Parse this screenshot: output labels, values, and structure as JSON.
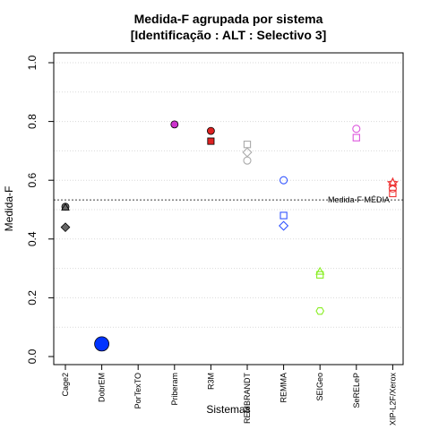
{
  "chart_data": {
    "type": "scatter",
    "title_line1": "Medida-F agrupada por sistema",
    "title_line2": "[Identificação : ALT : Selectivo 3]",
    "xlabel": "Sistemas",
    "ylabel": "Medida-F",
    "ylim": [
      0,
      1
    ],
    "yticks": [
      "0.0",
      "0.2",
      "0.4",
      "0.6",
      "0.8",
      "1.0"
    ],
    "categories": [
      "Cage2",
      "DobrEM",
      "PorTexTO",
      "Priberam",
      "R3M",
      "REMBRANDT",
      "REMMA",
      "SEIGeo",
      "SeRELeP",
      "XIP-L2F/Xerox"
    ],
    "reference_line": {
      "label": "Medida-F MÉDIA",
      "value": 0.533
    },
    "grid": "dotted horizontal",
    "points": [
      {
        "category": "Cage2",
        "y": 0.51,
        "shape": "circle",
        "color": "#666666",
        "filled": true,
        "size": "normal"
      },
      {
        "category": "Cage2",
        "y": 0.508,
        "shape": "triangle",
        "color": "#666666",
        "filled": true,
        "size": "normal"
      },
      {
        "category": "Cage2",
        "y": 0.44,
        "shape": "diamond",
        "color": "#666666",
        "filled": true,
        "size": "normal"
      },
      {
        "category": "DobrEM",
        "y": 0.043,
        "shape": "circle",
        "color": "#0033ff",
        "filled": true,
        "size": "large"
      },
      {
        "category": "Priberam",
        "y": 0.79,
        "shape": "circle",
        "color": "#cc33cc",
        "filled": true,
        "size": "normal"
      },
      {
        "category": "R3M",
        "y": 0.768,
        "shape": "circle",
        "color": "#dd2222",
        "filled": true,
        "size": "normal"
      },
      {
        "category": "R3M",
        "y": 0.733,
        "shape": "square",
        "color": "#dd2222",
        "filled": true,
        "size": "normal"
      },
      {
        "category": "REMBRANDT",
        "y": 0.722,
        "shape": "square",
        "color": "#aaaaaa",
        "filled": false,
        "size": "normal"
      },
      {
        "category": "REMBRANDT",
        "y": 0.695,
        "shape": "diamond",
        "color": "#aaaaaa",
        "filled": false,
        "size": "normal"
      },
      {
        "category": "REMBRANDT",
        "y": 0.667,
        "shape": "circle",
        "color": "#aaaaaa",
        "filled": false,
        "size": "normal"
      },
      {
        "category": "REMMA",
        "y": 0.6,
        "shape": "circle",
        "color": "#3355ff",
        "filled": false,
        "size": "normal"
      },
      {
        "category": "REMMA",
        "y": 0.48,
        "shape": "square",
        "color": "#3355ff",
        "filled": false,
        "size": "normal"
      },
      {
        "category": "REMMA",
        "y": 0.445,
        "shape": "diamond",
        "color": "#3355ff",
        "filled": false,
        "size": "normal"
      },
      {
        "category": "SEIGeo",
        "y": 0.29,
        "shape": "triangle",
        "color": "#88ee22",
        "filled": false,
        "size": "normal"
      },
      {
        "category": "SEIGeo",
        "y": 0.278,
        "shape": "square",
        "color": "#88ee22",
        "filled": false,
        "size": "normal"
      },
      {
        "category": "SEIGeo",
        "y": 0.155,
        "shape": "hexagon",
        "color": "#88ee22",
        "filled": false,
        "size": "normal"
      },
      {
        "category": "SeRELeP",
        "y": 0.775,
        "shape": "circle",
        "color": "#dd55dd",
        "filled": false,
        "size": "normal"
      },
      {
        "category": "SeRELeP",
        "y": 0.745,
        "shape": "square",
        "color": "#dd55dd",
        "filled": false,
        "size": "normal"
      },
      {
        "category": "XIP-L2F/Xerox",
        "y": 0.593,
        "shape": "triangle",
        "color": "#ee3333",
        "filled": false,
        "size": "normal"
      },
      {
        "category": "XIP-L2F/Xerox",
        "y": 0.59,
        "shape": "star",
        "color": "#ee3333",
        "filled": false,
        "size": "normal"
      },
      {
        "category": "XIP-L2F/Xerox",
        "y": 0.572,
        "shape": "circle",
        "color": "#ee3333",
        "filled": false,
        "size": "normal"
      },
      {
        "category": "XIP-L2F/Xerox",
        "y": 0.555,
        "shape": "square",
        "color": "#ee3333",
        "filled": false,
        "size": "normal"
      }
    ]
  }
}
